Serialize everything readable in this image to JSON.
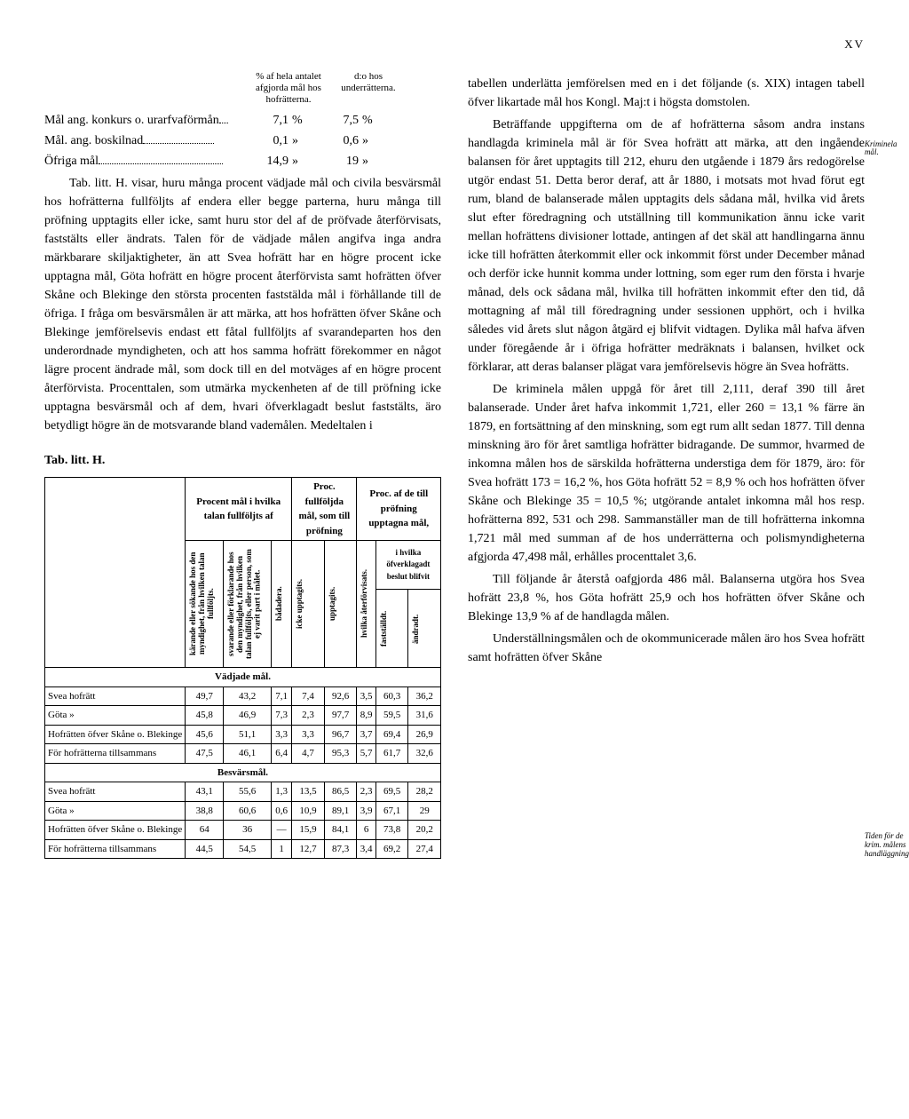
{
  "page_number": "XV",
  "mini_table": {
    "header1": "% af hela antalet afgjorda mål hos hofrätterna.",
    "header2": "d:o hos underrätterna.",
    "rows": [
      {
        "label": "Mål ang. konkurs o. urarfvaförmån",
        "v1": "7,1",
        "u1": "%",
        "v2": "7,5",
        "u2": "%"
      },
      {
        "label": "Mål. ang. boskilnad",
        "v1": "0,1",
        "u1": "»",
        "v2": "0,6",
        "u2": "»"
      },
      {
        "label": "Öfriga mål",
        "v1": "14,9",
        "u1": "»",
        "v2": "19",
        "u2": "»"
      }
    ]
  },
  "left_paras": [
    "Tab. litt. H. visar, huru många procent vädjade mål och civila besvärsmål hos hofrätterna fullföljts af endera eller begge parterna, huru många till pröfning upptagits eller icke, samt huru stor del af de pröfvade återförvisats, faststälts eller ändrats. Talen för de vädjade målen angifva inga andra märkbarare skiljaktigheter, än att Svea hofrätt har en högre procent icke upptagna mål, Göta hofrätt en högre procent återförvista samt hofrätten öfver Skåne och Blekinge den största procenten faststälda mål i förhållande till de öfriga. I fråga om besvärsmålen är att märka, att hos hofrätten öfver Skåne och Blekinge jemförelsevis endast ett fåtal fullföljts af svarandeparten hos den underordnade myndigheten, och att hos samma hofrätt förekommer en något lägre procent ändrade mål, som dock till en del motväges af en högre procent återförvista. Procenttalen, som utmärka myckenheten af de till pröfning icke upptagna besvärsmål och af dem, hvari öfverklagadt beslut faststälts, äro betydligt högre än de motsvarande bland vademålen. Medeltalen i"
  ],
  "tab_h_title": "Tab. litt. H.",
  "big_table": {
    "top_headers": {
      "g1": "Procent mål i hvilka talan fullföljts af",
      "g2": "Proc. fullföljda mål, som till pröfning",
      "g3": "Proc. af de till pröfning upptagna mål,",
      "sub3": "i hvilka öfverklagadt beslut blifvit"
    },
    "col_headers": [
      "kärande eller sökande hos den myndighet, från hvilken talan fullföljts.",
      "svarande eller förklarande hos den myndighet, från hvilken talan fullföljts, eller person, som ej varit part i målet.",
      "bådadera.",
      "icke upptagits.",
      "upptagits.",
      "hvilka återförvisats.",
      "fastställdt.",
      "ändradt."
    ],
    "section1": "Vädjade mål.",
    "rows1": [
      {
        "label": "Svea hofrätt",
        "c": [
          "49,7",
          "43,2",
          "7,1",
          "7,4",
          "92,6",
          "3,5",
          "60,3",
          "36,2"
        ]
      },
      {
        "label": "Göta     »",
        "c": [
          "45,8",
          "46,9",
          "7,3",
          "2,3",
          "97,7",
          "8,9",
          "59,5",
          "31,6"
        ]
      },
      {
        "label": "Hofrätten öfver Skåne o. Blekinge",
        "c": [
          "45,6",
          "51,1",
          "3,3",
          "3,3",
          "96,7",
          "3,7",
          "69,4",
          "26,9"
        ]
      },
      {
        "label": "För hofrätterna tillsammans",
        "c": [
          "47,5",
          "46,1",
          "6,4",
          "4,7",
          "95,3",
          "5,7",
          "61,7",
          "32,6"
        ]
      }
    ],
    "section2": "Besvärsmål.",
    "rows2": [
      {
        "label": "Svea hofrätt",
        "c": [
          "43,1",
          "55,6",
          "1,3",
          "13,5",
          "86,5",
          "2,3",
          "69,5",
          "28,2"
        ]
      },
      {
        "label": "Göta     »",
        "c": [
          "38,8",
          "60,6",
          "0,6",
          "10,9",
          "89,1",
          "3,9",
          "67,1",
          "29"
        ]
      },
      {
        "label": "Hofrätten öfver Skåne o. Blekinge",
        "c": [
          "64",
          "36",
          "—",
          "15,9",
          "84,1",
          "6",
          "73,8",
          "20,2"
        ]
      },
      {
        "label": "För hofrätterna tillsammans",
        "c": [
          "44,5",
          "54,5",
          "1",
          "12,7",
          "87,3",
          "3,4",
          "69,2",
          "27,4"
        ]
      }
    ]
  },
  "right_paras": [
    "tabellen underlätta jemförelsen med en i det följande (s. XIX) intagen tabell öfver likartade mål hos Kongl. Maj:t i högsta domstolen.",
    "Beträffande uppgifterna om de af hofrätterna såsom andra instans handlagda kriminela mål är för Svea hofrätt att märka, att den ingående balansen för året upptagits till 212, ehuru den utgående i 1879 års redogörelse utgör endast 51. Detta beror deraf, att år 1880, i motsats mot hvad förut egt rum, bland de balanserade målen upptagits dels sådana mål, hvilka vid årets slut efter föredragning och utställning till kommunikation ännu icke varit mellan hofrättens divisioner lottade, antingen af det skäl att handlingarna ännu icke till hofrätten återkommit eller ock inkommit först under December månad och derför icke hunnit komma under lottning, som eger rum den första i hvarje månad, dels ock sådana mål, hvilka till hofrätten inkommit efter den tid, då mottagning af mål till föredragning under sessionen upphört, och i hvilka således vid årets slut någon åtgärd ej blifvit vidtagen. Dylika mål hafva äfven under föregående år i öfriga hofrätter medräknats i balansen, hvilket ock förklarar, att deras balanser plägat vara jemförelsevis högre än Svea hofrätts.",
    "De kriminela målen uppgå för året till 2,111, deraf 390 till året balanserade. Under året hafva inkommit 1,721, eller 260 = 13,1 % färre än 1879, en fortsättning af den minskning, som egt rum allt sedan 1877. Till denna minskning äro för året samtliga hofrätter bidragande. De summor, hvarmed de inkomna målen hos de särskilda hofrätterna understiga dem för 1879, äro: för Svea hofrätt 173 = 16,2 %, hos Göta hofrätt 52 = 8,9 % och hos hofrätten öfver Skåne och Blekinge 35 = 10,5 %; utgörande antalet inkomna mål hos resp. hofrätterna 892, 531 och 298. Sammanställer man de till hofrätterna inkomna 1,721 mål med summan af de hos underrätterna och polismyndigheterna afgjorda 47,498 mål, erhålles procenttalet 3,6.",
    "Till följande år återstå oafgjorda 486 mål. Balanserna utgöra hos Svea hofrätt 23,8 %, hos Göta hofrätt 25,9 och hos hofrätten öfver Skåne och Blekinge 13,9 % af de handlagda målen.",
    "Underställningsmålen och de okommunicerade målen äro hos Svea hofrätt samt hofrätten öfver Skåne"
  ],
  "margin_notes": {
    "n1": "Kriminela mål.",
    "n2": "Tiden för de krim. målens handläggning."
  },
  "styling": {
    "body_bg": "#ffffff",
    "text_color": "#000000",
    "body_fontsize": 14,
    "table_fontsize": 11,
    "border_color": "#000000",
    "font_family": "Georgia, Times New Roman, serif"
  }
}
